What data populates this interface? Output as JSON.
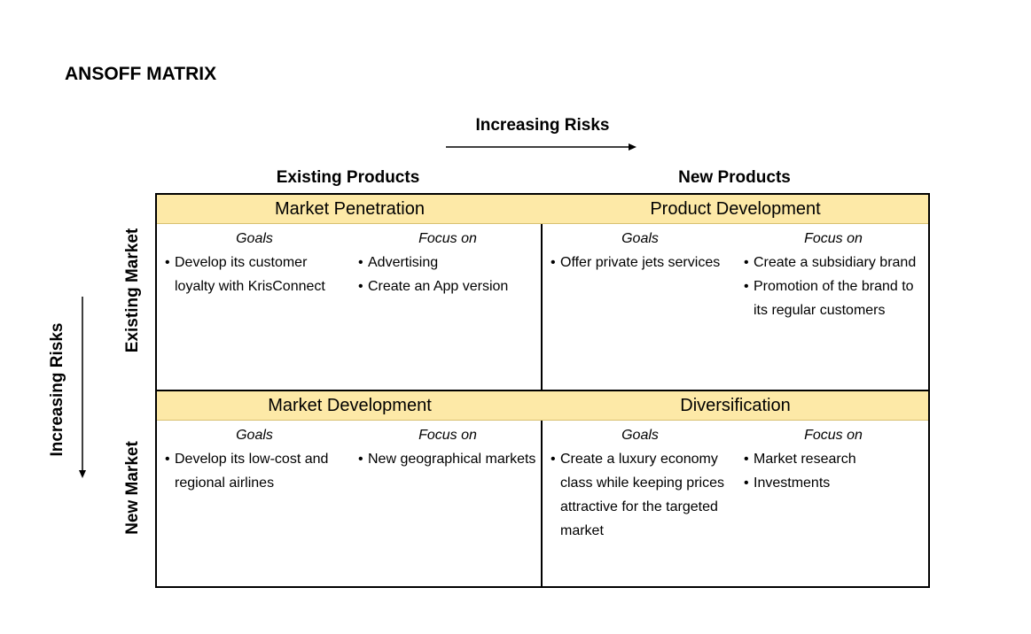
{
  "title": "ANSOFF MATRIX",
  "top_axis": {
    "label": "Increasing Risks"
  },
  "left_axis": {
    "label": "Increasing Risks"
  },
  "columns": [
    "Existing Products",
    "New Products"
  ],
  "rows": [
    "Existing Market",
    "New Market"
  ],
  "quadrants": [
    {
      "title": "Market Penetration",
      "goals_label": "Goals",
      "focus_label": "Focus on",
      "goals": [
        "Develop its customer loyalty with KrisConnect"
      ],
      "focus": [
        "Advertising",
        "Create an App version"
      ]
    },
    {
      "title": "Product Development",
      "goals_label": "Goals",
      "focus_label": "Focus on",
      "goals": [
        "Offer private jets services"
      ],
      "focus": [
        "Create a subsidiary brand",
        "Promotion of the brand to its regular customers"
      ]
    },
    {
      "title": "Market Development",
      "goals_label": "Goals",
      "focus_label": "Focus on",
      "goals": [
        "Develop its low-cost and regional airlines"
      ],
      "focus": [
        "New geographical markets"
      ]
    },
    {
      "title": "Diversification",
      "goals_label": "Goals",
      "focus_label": "Focus on",
      "goals": [
        "Create a luxury economy class while keeping prices attractive for the targeted market"
      ],
      "focus": [
        "Market research",
        "Investments"
      ]
    }
  ]
}
